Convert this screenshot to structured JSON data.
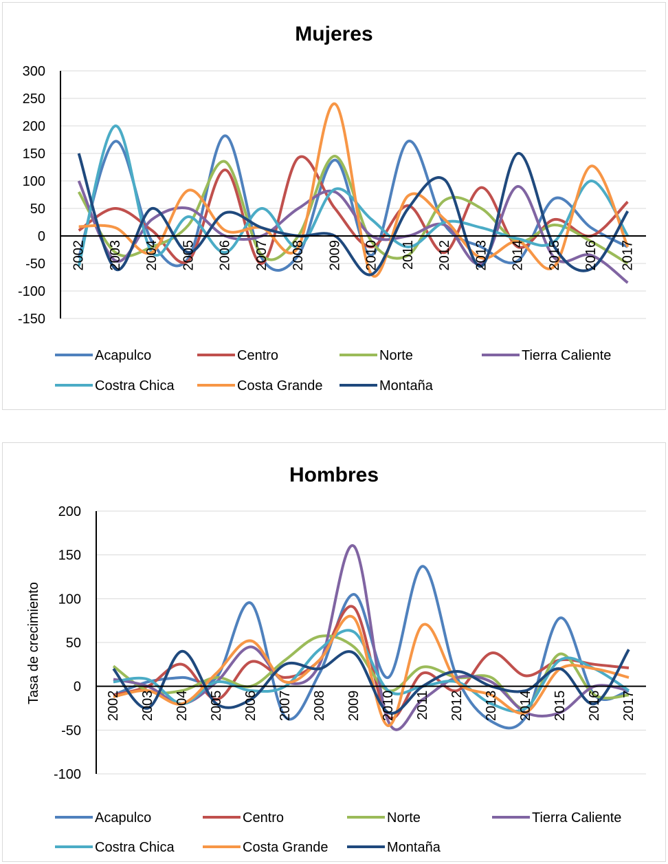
{
  "chart_data": [
    {
      "type": "line",
      "title": "Mujeres",
      "xlabel": "",
      "ylabel": "",
      "ylim": [
        -150,
        300
      ],
      "yticks": [
        -150,
        -100,
        -50,
        0,
        50,
        100,
        150,
        200,
        250,
        300
      ],
      "grid": true,
      "legend_position": "bottom",
      "smooth": true,
      "categories": [
        "2002",
        "2003",
        "2004",
        "2005",
        "2006",
        "2007",
        "2008",
        "2009",
        "2010",
        "2011",
        "2012",
        "2013",
        "2014",
        "2015",
        "2016",
        "2017"
      ],
      "series": [
        {
          "name": "Acapulco",
          "color": "#4f81bd",
          "values": [
            -40,
            172,
            -10,
            -40,
            182,
            -40,
            -35,
            138,
            -35,
            172,
            20,
            -20,
            -45,
            68,
            15,
            -20
          ]
        },
        {
          "name": "Centro",
          "color": "#c0504d",
          "values": [
            10,
            50,
            10,
            -45,
            120,
            -50,
            142,
            50,
            -20,
            55,
            -30,
            88,
            -20,
            30,
            0,
            62
          ]
        },
        {
          "name": "Norte",
          "color": "#9bbb59",
          "values": [
            80,
            -30,
            -20,
            20,
            135,
            -35,
            0,
            145,
            -10,
            -35,
            65,
            50,
            -10,
            20,
            -10,
            -50
          ]
        },
        {
          "name": "Tierra Caliente",
          "color": "#8064a2",
          "values": [
            100,
            -45,
            30,
            50,
            0,
            0,
            50,
            80,
            0,
            0,
            20,
            -50,
            90,
            -40,
            -35,
            -85
          ]
        },
        {
          "name": "Costra Chica",
          "color": "#4bacc6",
          "values": [
            -55,
            200,
            -30,
            35,
            -30,
            50,
            -20,
            85,
            30,
            -20,
            25,
            15,
            -5,
            -10,
            100,
            0
          ]
        },
        {
          "name": "Costa Grande",
          "color": "#f79646",
          "values": [
            17,
            15,
            -30,
            83,
            10,
            15,
            -20,
            240,
            -70,
            73,
            30,
            -40,
            -10,
            -55,
            127,
            -20
          ]
        },
        {
          "name": "Montaña",
          "color": "#1f497d",
          "values": [
            150,
            -60,
            50,
            -30,
            42,
            15,
            0,
            0,
            -70,
            50,
            102,
            -55,
            150,
            -20,
            -60,
            45
          ]
        }
      ]
    },
    {
      "type": "line",
      "title": "Hombres",
      "xlabel": "",
      "ylabel": "Tasa de crecimiento",
      "ylim": [
        -100,
        200
      ],
      "yticks": [
        -100,
        -50,
        0,
        50,
        100,
        150,
        200
      ],
      "grid": true,
      "legend_position": "bottom",
      "smooth": true,
      "categories": [
        "2002",
        "2003",
        "2004",
        "2005",
        "2006",
        "2007",
        "2008",
        "2009",
        "2010",
        "2011",
        "2012",
        "2013",
        "2014",
        "2015",
        "2016",
        "2017"
      ],
      "series": [
        {
          "name": "Acapulco",
          "color": "#4f81bd",
          "values": [
            -10,
            5,
            10,
            10,
            95,
            -35,
            15,
            105,
            10,
            137,
            10,
            -40,
            -35,
            78,
            -10,
            -5
          ]
        },
        {
          "name": "Centro",
          "color": "#c0504d",
          "values": [
            -10,
            0,
            25,
            -15,
            28,
            10,
            30,
            90,
            -35,
            15,
            -5,
            38,
            12,
            30,
            25,
            21
          ]
        },
        {
          "name": "Norte",
          "color": "#9bbb59",
          "values": [
            23,
            -5,
            -5,
            10,
            0,
            30,
            57,
            45,
            -5,
            22,
            10,
            10,
            -25,
            37,
            -10,
            -10
          ]
        },
        {
          "name": "Tierra Caliente",
          "color": "#8064a2",
          "values": [
            8,
            0,
            -20,
            5,
            45,
            5,
            25,
            160,
            -40,
            -15,
            10,
            5,
            -30,
            -30,
            0,
            -5
          ]
        },
        {
          "name": "Costa Chica",
          "color": "#4bacc6",
          "values": [
            5,
            8,
            -20,
            5,
            -5,
            0,
            42,
            62,
            -5,
            0,
            5,
            -20,
            -25,
            30,
            20,
            -5
          ]
        },
        {
          "name": "Costa Grande",
          "color": "#f79646",
          "values": [
            -12,
            -5,
            -20,
            15,
            52,
            5,
            30,
            78,
            -45,
            70,
            5,
            -10,
            -30,
            20,
            20,
            10
          ]
        },
        {
          "name": "Montaña",
          "color": "#1f497d",
          "values": [
            20,
            -25,
            40,
            -20,
            -15,
            25,
            20,
            38,
            -30,
            0,
            17,
            0,
            -5,
            20,
            -20,
            42
          ]
        }
      ]
    }
  ],
  "legends": [
    {
      "items": [
        "Acapulco",
        "Centro",
        "Norte",
        "Tierra Caliente",
        "Costra Chica",
        "Costa Grande",
        "Montaña"
      ]
    },
    {
      "items": [
        "Acapulco",
        "Centro",
        "Norte",
        "Tierra Caliente",
        "Costra Chica",
        "Costa Grande",
        "Montaña"
      ]
    }
  ]
}
